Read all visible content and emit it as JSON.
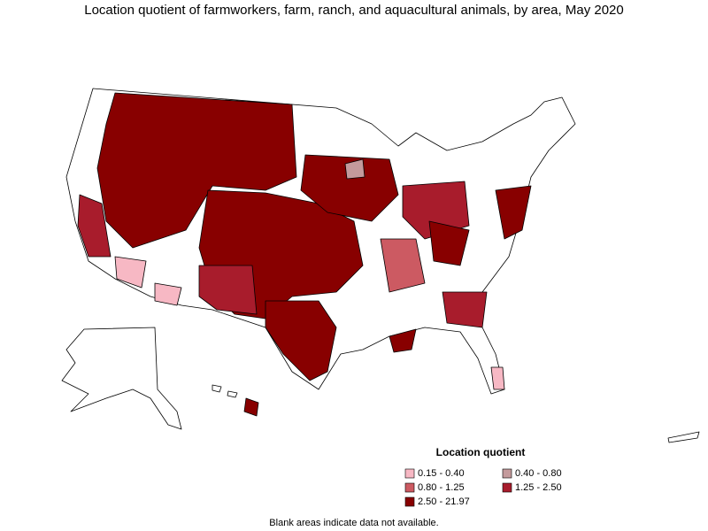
{
  "header": {
    "title": "Location quotient of farmworkers, farm, ranch, and aquacultural animals, by area, May 2020"
  },
  "legend": {
    "title": "Location quotient",
    "items": [
      {
        "label": "0.15 - 0.40",
        "color": "#f7b8c4"
      },
      {
        "label": "0.40 - 0.80",
        "color": "#c49a9c"
      },
      {
        "label": "0.80 - 1.25",
        "color": "#cc5a62"
      },
      {
        "label": "1.25 - 2.50",
        "color": "#a81c2c"
      },
      {
        "label": "2.50 - 21.97",
        "color": "#880000"
      }
    ]
  },
  "note": "Blank areas indicate data not available."
}
